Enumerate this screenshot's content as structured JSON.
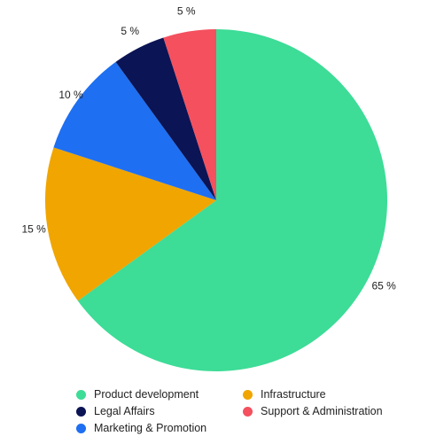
{
  "chart_data": {
    "type": "pie",
    "categories": [
      "Product development",
      "Infrastructure",
      "Marketing & Promotion",
      "Legal Affairs",
      "Support & Administration"
    ],
    "values": [
      65,
      15,
      10,
      5,
      5
    ],
    "labels": [
      "65 %",
      "15 %",
      "10 %",
      "5 %",
      "5 %"
    ],
    "colors": [
      "#3ddc97",
      "#f0a500",
      "#1e6ff1",
      "#0b1454",
      "#f4505e"
    ],
    "start_angle_deg": 0,
    "direction": "clockwise",
    "legend_position": "bottom",
    "title": "",
    "legend": {
      "items": [
        {
          "label": "Product development",
          "color": "#3ddc97"
        },
        {
          "label": "Infrastructure",
          "color": "#f0a500"
        },
        {
          "label": "Legal Affairs",
          "color": "#0b1454"
        },
        {
          "label": "Support & Administration",
          "color": "#f4505e"
        },
        {
          "label": "Marketing & Promotion",
          "color": "#1e6ff1"
        }
      ]
    }
  }
}
